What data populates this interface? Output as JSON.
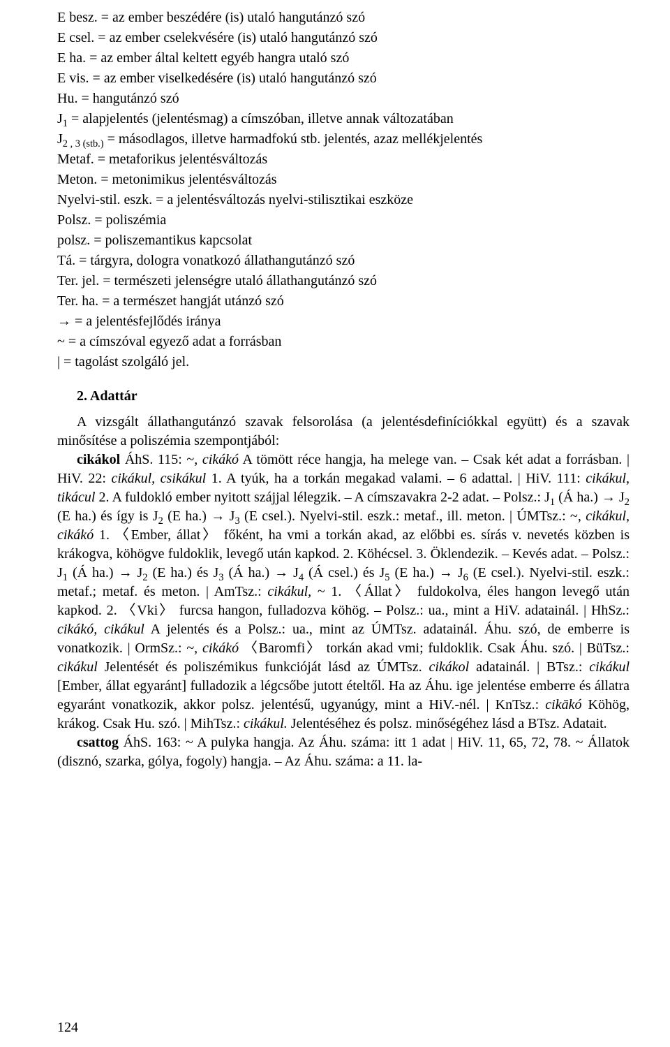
{
  "abbrev": [
    "E besz. = az ember beszédére (is) utaló hangutánzó szó",
    "E csel. = az ember cselekvésére (is) utaló hangutánzó szó",
    "E ha. = az ember által keltett egyéb hangra utaló szó",
    "E vis. = az ember viselkedésére (is) utaló hangutánzó szó",
    "Hu. = hangutánzó szó"
  ],
  "j1_pre": "J",
  "j1_sub": "1",
  "j1_post": " = alapjelentés (jelentésmag) a címszóban, illetve annak változatában",
  "j2_pre": "J",
  "j2_sub": "2 , 3 (stb.)",
  "j2_post": " = másodlagos, illetve harmadfokú stb. jelentés, azaz mellékjelentés",
  "abbrev2": [
    "Metaf. = metaforikus jelentésváltozás",
    "Meton. = metonimikus jelentésváltozás",
    "Nyelvi-stil. eszk. = a jelentésváltozás nyelvi-stilisztikai eszköze",
    "Polsz. = poliszémia",
    "polsz. = poliszemantikus kapcsolat",
    "Tá. = tárgyra, dologra vonatkozó állathangutánzó szó",
    "Ter. jel. = természeti jelenségre utaló állathangutánzó szó",
    "Ter. ha. = a természet hangját utánzó szó",
    "→ = a jelentésfejlődés iránya",
    "~ = a címszóval egyező adat a forrásban",
    "| = tagolást szolgáló jel."
  ],
  "section_heading": "2. Adattár",
  "intro_para": "A vizsgált állathangutánzó szavak felsorolása (a jelentésdefiníciókkal együtt) és a szavak minősítése a poliszémia szempontjából:",
  "cikakol": {
    "headword": "cikákol",
    "t1": " ÁhS. 115: ~, ",
    "it1": "cikákó",
    "t2": " A tömött réce hangja, ha melege van. – Csak két adat a forrásban. | HiV. 22: ",
    "it2": "cikákul, csikákul",
    "t3": " 1. A tyúk, ha a torkán megakad valami. – 6 adattal. | HiV. 111: ",
    "it3": "cikákul, tikácul",
    "t4": " 2. A fuldokló ember nyitott szájjal lélegzik. – A címszavakra 2-2 adat. – Polsz.: J",
    "sub1": "1",
    "t5": " (Á ha.) → J",
    "sub2": "2",
    "t6": " (E ha.) és így is J",
    "sub3": "2",
    "t7": " (E ha.) → J",
    "sub4": "3",
    "t8": " (E csel.). Nyelvi-stil. eszk.: metaf., ill. meton. | ÚMTsz.: ~, ",
    "it4": "cikákul, cikákó",
    "t9": " 1. 〈Ember, állat〉 főként, ha vmi a torkán akad, az előbbi es. sírás v. nevetés közben is krákogva, köhögve fuldoklik, levegő után kapkod. 2. Köhécsel. 3. Öklendezik. – Kevés adat. – Polsz.: J",
    "sub5": "1",
    "t10": " (Á ha.) → J",
    "sub6": "2",
    "t11": " (E ha.) és J",
    "sub7": "3",
    "t12": " (Á ha.) → J",
    "sub8": "4",
    "t13": " (Á csel.) és J",
    "sub9": "5",
    "t14": " (E ha.) → J",
    "sub10": "6",
    "t15": " (E csel.). Nyelvi-stil. eszk.: metaf.; metaf. és meton. | AmTsz.: ",
    "it5": "cikákul,",
    "t16": " ~ 1. 〈Állat〉 fuldokolva, éles hangon levegő után kapkod. 2. 〈Vki〉 furcsa hangon, fulladozva köhög. – Polsz.: ua., mint a HiV. adatainál. | HhSz.: ",
    "it6": "cikákó, cikákul",
    "t17": " A jelentés és a Polsz.: ua., mint az ÚMTsz. adatainál. Áhu. szó, de emberre is vonatkozik. | OrmSz.: ~, ",
    "it7": "cikákó",
    "t18": " 〈Baromfi〉 torkán akad vmi; fuldoklik. Csak Áhu. szó. | BüTsz.: ",
    "it8": "cikákul",
    "t19": " Jelentését és poliszémikus funkcióját lásd az ÚMTsz. ",
    "it9": "cikákol",
    "t20": " adatainál. | BTsz.: ",
    "it10": "cikákul",
    "t21": " [Ember, állat egyaránt] fulladozik a légcsőbe jutott ételtől. Ha az Áhu. ige jelentése emberre és állatra egyaránt vonatkozik, akkor polsz. jelentésű, ugyanúgy, mint a HiV.-nél. | KnTsz.: ",
    "it11": "cikākó",
    "t22": " Köhög, krákog. Csak Hu. szó. | MihTsz.: ",
    "it12": "cikákul.",
    "t23": " Jelentéséhez és polsz. minőségéhez lásd a BTsz. Adatait."
  },
  "csattog": {
    "headword": "csattog",
    "t1": " ÁhS. 163: ~ A pulyka hangja. Az Áhu. száma: itt 1 adat | HiV. 11, 65, 72, 78. ~ Állatok (disznó, szarka, gólya, fogoly) hangja. – Az Áhu. száma: a 11. la-"
  },
  "page_number": "124"
}
